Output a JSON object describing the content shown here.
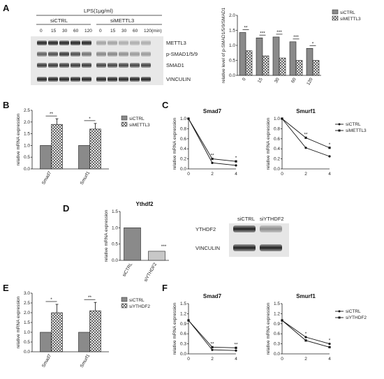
{
  "panels": {
    "A": {
      "letter": "A",
      "blot": {
        "treatment": "LPS(1μg/ml)",
        "group1": "siCTRL",
        "group2": "siMETTL3",
        "times": [
          "0",
          "15",
          "30",
          "60",
          "120",
          "0",
          "15",
          "30",
          "60",
          "120(min)"
        ],
        "rows": [
          "METTL3",
          "p-SMAD1/5/9",
          "SMAD1",
          "VINCULIN"
        ]
      },
      "legend": [
        "siCTRL",
        "siMETTL3"
      ]
    },
    "B": {
      "letter": "B",
      "legend": [
        "siCTRL",
        "siMETTL3"
      ]
    },
    "C": {
      "letter": "C",
      "legend": [
        "siCTRL",
        "siMETTL3"
      ]
    },
    "D": {
      "letter": "D",
      "blot_cols": [
        "siCTRL",
        "siYTHDF2"
      ],
      "blot_rows": [
        "YTHDF2",
        "VINCULIN"
      ]
    },
    "E": {
      "letter": "E",
      "legend": [
        "siCTRL",
        "siYTHDF2"
      ]
    },
    "F": {
      "letter": "F",
      "legend": [
        "siCTRL",
        "siYTHDF2"
      ]
    }
  },
  "colors": {
    "solid": "#8a8a8a",
    "dark": "#444444",
    "hatch_bg": "#ffffff"
  },
  "chart_data": [
    {
      "id": "A-bar",
      "type": "bar",
      "categories": [
        "0",
        "15",
        "30",
        "60",
        "120"
      ],
      "ylabel": "relative level of p-SMAD1/5/9/SMAD1",
      "yticks": [
        "0.0",
        "0.5",
        "1.0",
        "1.5",
        "2.0"
      ],
      "ylim": [
        0,
        2
      ],
      "series": [
        {
          "name": "siCTRL",
          "values": [
            1.43,
            1.25,
            1.28,
            1.12,
            0.9
          ]
        },
        {
          "name": "siMETTL3",
          "values": [
            0.82,
            0.65,
            0.58,
            0.5,
            0.5
          ]
        }
      ],
      "significance": [
        "**",
        "***",
        "***",
        "***",
        "*"
      ]
    },
    {
      "id": "B-bar",
      "type": "bar",
      "categories": [
        "Smad7",
        "Smurf1"
      ],
      "ylabel": "relative mRNA expression",
      "yticks": [
        "0.0",
        "0.5",
        "1.0",
        "1.5",
        "2.0",
        "2.5"
      ],
      "ylim": [
        0,
        2.5
      ],
      "series": [
        {
          "name": "siCTRL",
          "values": [
            1.0,
            1.0
          ]
        },
        {
          "name": "siMETTL3",
          "values": [
            1.9,
            1.7
          ]
        }
      ],
      "significance": [
        "**",
        "*"
      ]
    },
    {
      "id": "C-smad7",
      "type": "line",
      "title": "Smad7",
      "x": [
        "0",
        "2",
        "4"
      ],
      "ylabel": "relative mRNA expression",
      "yticks": [
        "0.0",
        "0.2",
        "0.4",
        "0.6",
        "0.8",
        "1.0"
      ],
      "ylim": [
        0,
        1.0
      ],
      "series": [
        {
          "name": "siCTRL",
          "values": [
            1.0,
            0.12,
            0.07
          ]
        },
        {
          "name": "siMETTL3",
          "values": [
            1.0,
            0.2,
            0.15
          ]
        }
      ],
      "significance": [
        "",
        "**",
        "*"
      ]
    },
    {
      "id": "C-smurf1",
      "type": "line",
      "title": "Smurf1",
      "x": [
        "0",
        "2",
        "4"
      ],
      "ylabel": "relative mRNA expression",
      "yticks": [
        "0.0",
        "0.2",
        "0.4",
        "0.6",
        "0.8",
        "1.0"
      ],
      "ylim": [
        0,
        1.0
      ],
      "series": [
        {
          "name": "siCTRL",
          "values": [
            1.0,
            0.42,
            0.25
          ]
        },
        {
          "name": "siMETTL3",
          "values": [
            1.0,
            0.62,
            0.42
          ]
        }
      ],
      "significance": [
        "",
        "**",
        "*"
      ]
    },
    {
      "id": "D-bar",
      "type": "bar",
      "title": "Ythdf2",
      "categories": [
        "siCTRL",
        "siYTHDF2"
      ],
      "ylabel": "relative mRNA expression",
      "yticks": [
        "0.0",
        "0.5",
        "1.0",
        "1.5"
      ],
      "ylim": [
        0,
        1.5
      ],
      "series": [
        {
          "values": [
            1.0,
            0.28
          ]
        }
      ],
      "significance": [
        "",
        "***"
      ]
    },
    {
      "id": "E-bar",
      "type": "bar",
      "categories": [
        "Smad7",
        "Smurf1"
      ],
      "ylabel": "relative mRNA expression",
      "yticks": [
        "0.0",
        "0.5",
        "1.0",
        "1.5",
        "2.0",
        "2.5",
        "3.0"
      ],
      "ylim": [
        0,
        3.0
      ],
      "series": [
        {
          "name": "siCTRL",
          "values": [
            1.0,
            1.0
          ]
        },
        {
          "name": "siYTHDF2",
          "values": [
            2.0,
            2.1
          ]
        }
      ],
      "significance": [
        "*",
        "**"
      ]
    },
    {
      "id": "F-smad7",
      "type": "line",
      "title": "Smad7",
      "x": [
        "0",
        "2",
        "4"
      ],
      "ylabel": "relative mRNA expression",
      "yticks": [
        "0.0",
        "0.3",
        "0.6",
        "0.9",
        "1.2",
        "1.5"
      ],
      "ylim": [
        0,
        1.5
      ],
      "series": [
        {
          "name": "siCTRL",
          "values": [
            1.0,
            0.12,
            0.1
          ]
        },
        {
          "name": "siYTHDF2",
          "values": [
            1.0,
            0.2,
            0.18
          ]
        }
      ],
      "significance": [
        "",
        "**",
        "**"
      ]
    },
    {
      "id": "F-smurf1",
      "type": "line",
      "title": "Smurf1",
      "x": [
        "0",
        "2",
        "4"
      ],
      "ylabel": "relative mRNA expression",
      "yticks": [
        "0.0",
        "0.3",
        "0.6",
        "0.9",
        "1.2",
        "1.5"
      ],
      "ylim": [
        0,
        1.5
      ],
      "series": [
        {
          "name": "siCTRL",
          "values": [
            1.0,
            0.5,
            0.3
          ]
        },
        {
          "name": "siYTHDF2",
          "values": [
            1.0,
            0.4,
            0.2
          ]
        }
      ],
      "significance": [
        "",
        "*",
        "*"
      ]
    }
  ]
}
